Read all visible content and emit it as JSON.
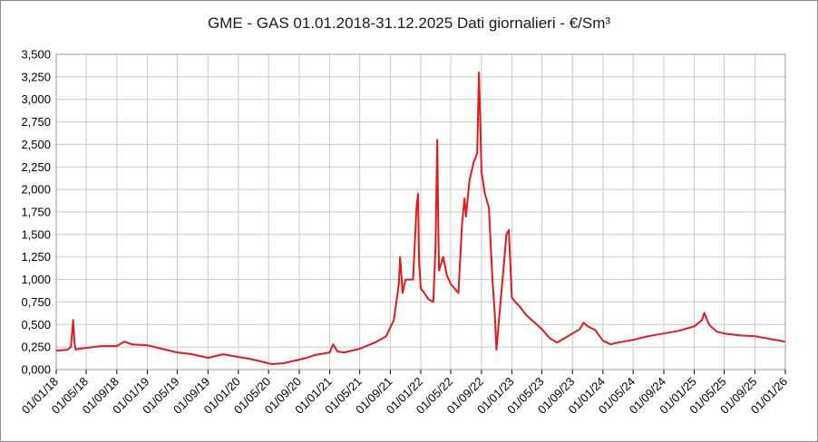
{
  "chart_data": {
    "type": "line",
    "title": "GME - GAS 01.01.2018-31.12.2025 Dati giornalieri - €/Sm³",
    "xlabel": "",
    "ylabel": "",
    "ylim": [
      0,
      3.5
    ],
    "y_ticks": [
      "0,000",
      "0,250",
      "0,500",
      "0,750",
      "1,000",
      "1,250",
      "1,500",
      "1,750",
      "2,000",
      "2,250",
      "2,500",
      "2,750",
      "3,000",
      "3,250",
      "3,500"
    ],
    "x_ticks": [
      "01/01/18",
      "01/05/18",
      "01/09/18",
      "01/01/19",
      "01/05/19",
      "01/09/19",
      "01/01/20",
      "01/05/20",
      "01/09/20",
      "01/01/21",
      "01/05/21",
      "01/09/21",
      "01/01/22",
      "01/05/22",
      "01/09/22",
      "01/01/23",
      "01/05/23",
      "01/09/23",
      "01/01/24",
      "01/05/24",
      "01/09/24",
      "01/01/25",
      "01/05/25",
      "01/09/25",
      "01/01/26"
    ],
    "grid": true,
    "line_color": "#e31a1a",
    "series": [
      {
        "x": [
          "2018-01-01",
          "2018-02-15",
          "2018-03-01",
          "2018-03-10",
          "2018-03-15",
          "2018-03-20",
          "2018-04-01",
          "2018-05-01",
          "2018-07-01",
          "2018-09-01",
          "2018-10-01",
          "2018-11-01",
          "2019-01-01",
          "2019-03-01",
          "2019-05-01",
          "2019-07-01",
          "2019-09-01",
          "2019-10-01",
          "2019-11-01",
          "2020-01-01",
          "2020-02-15",
          "2020-04-01",
          "2020-05-15",
          "2020-07-01",
          "2020-08-15",
          "2020-10-01",
          "2020-11-01",
          "2021-01-01",
          "2021-01-15",
          "2021-02-01",
          "2021-03-01",
          "2021-05-01",
          "2021-07-01",
          "2021-08-15",
          "2021-09-15",
          "2021-10-05",
          "2021-10-10",
          "2021-10-20",
          "2021-11-01",
          "2021-12-01",
          "2021-12-15",
          "2021-12-21",
          "2021-12-25",
          "2022-01-01",
          "2022-01-15",
          "2022-02-01",
          "2022-02-20",
          "2022-03-01",
          "2022-03-08",
          "2022-03-12",
          "2022-03-15",
          "2022-04-01",
          "2022-04-15",
          "2022-05-01",
          "2022-06-01",
          "2022-06-15",
          "2022-06-25",
          "2022-07-01",
          "2022-07-15",
          "2022-08-01",
          "2022-08-15",
          "2022-08-22",
          "2022-08-26",
          "2022-09-01",
          "2022-09-15",
          "2022-10-01",
          "2022-10-15",
          "2022-10-25",
          "2022-10-31",
          "2022-11-15",
          "2022-12-01",
          "2022-12-10",
          "2022-12-20",
          "2023-01-01",
          "2023-01-15",
          "2023-02-01",
          "2023-03-01",
          "2023-05-01",
          "2023-06-01",
          "2023-07-01",
          "2023-08-01",
          "2023-09-01",
          "2023-10-01",
          "2023-10-15",
          "2023-11-01",
          "2023-12-01",
          "2024-01-01",
          "2024-02-01",
          "2024-03-01",
          "2024-05-01",
          "2024-07-01",
          "2024-09-01",
          "2024-11-01",
          "2025-01-01",
          "2025-02-01",
          "2025-02-10",
          "2025-03-01",
          "2025-04-01",
          "2025-05-01",
          "2025-07-01",
          "2025-09-01",
          "2025-11-01",
          "2025-12-31"
        ],
        "values": [
          0.21,
          0.22,
          0.25,
          0.55,
          0.3,
          0.22,
          0.23,
          0.24,
          0.26,
          0.26,
          0.31,
          0.28,
          0.27,
          0.23,
          0.19,
          0.17,
          0.13,
          0.15,
          0.17,
          0.14,
          0.12,
          0.09,
          0.06,
          0.07,
          0.1,
          0.13,
          0.16,
          0.19,
          0.28,
          0.2,
          0.19,
          0.23,
          0.3,
          0.37,
          0.55,
          0.95,
          1.25,
          0.85,
          1.0,
          1.0,
          1.8,
          1.95,
          1.2,
          0.9,
          0.85,
          0.78,
          0.75,
          1.35,
          2.55,
          1.6,
          1.1,
          1.25,
          1.05,
          0.95,
          0.85,
          1.6,
          1.9,
          1.7,
          2.1,
          2.3,
          2.4,
          3.3,
          2.9,
          2.2,
          1.95,
          1.8,
          1.0,
          0.6,
          0.22,
          0.7,
          1.2,
          1.5,
          1.55,
          0.8,
          0.75,
          0.7,
          0.6,
          0.45,
          0.35,
          0.3,
          0.35,
          0.4,
          0.45,
          0.52,
          0.48,
          0.44,
          0.32,
          0.28,
          0.3,
          0.33,
          0.37,
          0.4,
          0.43,
          0.48,
          0.55,
          0.63,
          0.5,
          0.42,
          0.4,
          0.38,
          0.37,
          0.34,
          0.31
        ]
      }
    ]
  }
}
